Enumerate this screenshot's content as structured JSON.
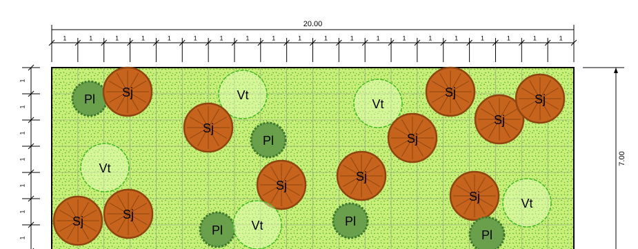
{
  "dimensions": {
    "top": {
      "label": "20.00",
      "segments": [
        "1",
        "1",
        "1",
        "1",
        "1",
        "1",
        "1",
        "1",
        "1",
        "1",
        "1",
        "1",
        "1",
        "1",
        "1",
        "1",
        "1",
        "1",
        "1",
        "1"
      ]
    },
    "left": {
      "segments": [
        "1",
        "1",
        "1",
        "1",
        "1",
        "1",
        "1"
      ]
    },
    "right": {
      "label": "7.00"
    }
  },
  "plants": [
    {
      "label": "Pl"
    },
    {
      "label": "Sj"
    },
    {
      "label": "Vt"
    },
    {
      "label": "Sj"
    },
    {
      "label": "Pl"
    },
    {
      "label": "Vt"
    },
    {
      "label": "Sj"
    },
    {
      "label": "Sj"
    },
    {
      "label": "Sj"
    },
    {
      "label": "Sj"
    },
    {
      "label": "Vt"
    },
    {
      "label": "Sj"
    },
    {
      "label": "Sj"
    },
    {
      "label": "Sj"
    },
    {
      "label": "Vt"
    },
    {
      "label": "Sj"
    },
    {
      "label": "Sj"
    },
    {
      "label": "Pl"
    },
    {
      "label": "Vt"
    },
    {
      "label": "Pl"
    },
    {
      "label": "Pl"
    }
  ]
}
